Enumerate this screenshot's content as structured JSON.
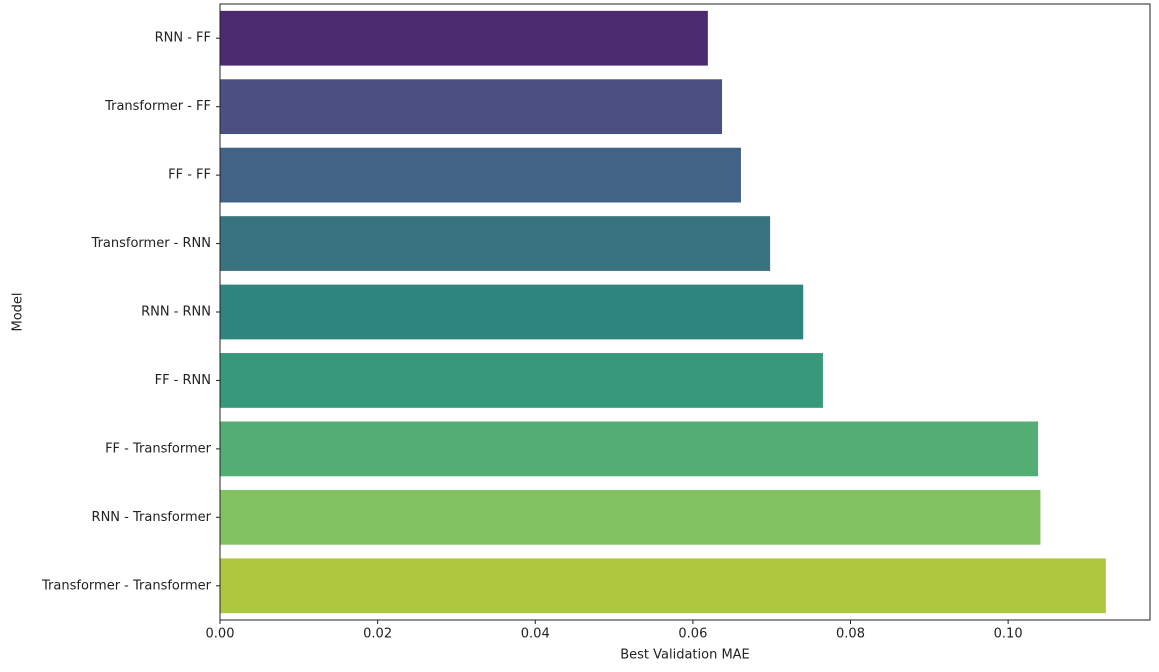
{
  "chart_data": {
    "type": "barh",
    "categories": [
      "RNN - FF",
      "Transformer - FF",
      "FF - FF",
      "Transformer - RNN",
      "RNN - RNN",
      "FF - RNN",
      "FF - Transformer",
      "RNN - Transformer",
      "Transformer - Transformer"
    ],
    "values": [
      0.0619,
      0.0637,
      0.0661,
      0.0698,
      0.074,
      0.0765,
      0.1038,
      0.1041,
      0.1124
    ],
    "colors": [
      "#4c2a6e",
      "#4b4f82",
      "#426385",
      "#38737f",
      "#2e847f",
      "#35997a",
      "#52ae72",
      "#82c262",
      "#adc73e"
    ],
    "xlabel": "Best Validation MAE",
    "ylabel": "Model",
    "xlim": [
      0,
      0.118
    ],
    "xticks": [
      {
        "value": 0,
        "label": "0.00"
      },
      {
        "value": 0.02,
        "label": "0.02"
      },
      {
        "value": 0.04,
        "label": "0.04"
      },
      {
        "value": 0.06,
        "label": "0.06"
      },
      {
        "value": 0.08,
        "label": "0.08"
      },
      {
        "value": 0.1,
        "label": "0.10"
      }
    ]
  }
}
